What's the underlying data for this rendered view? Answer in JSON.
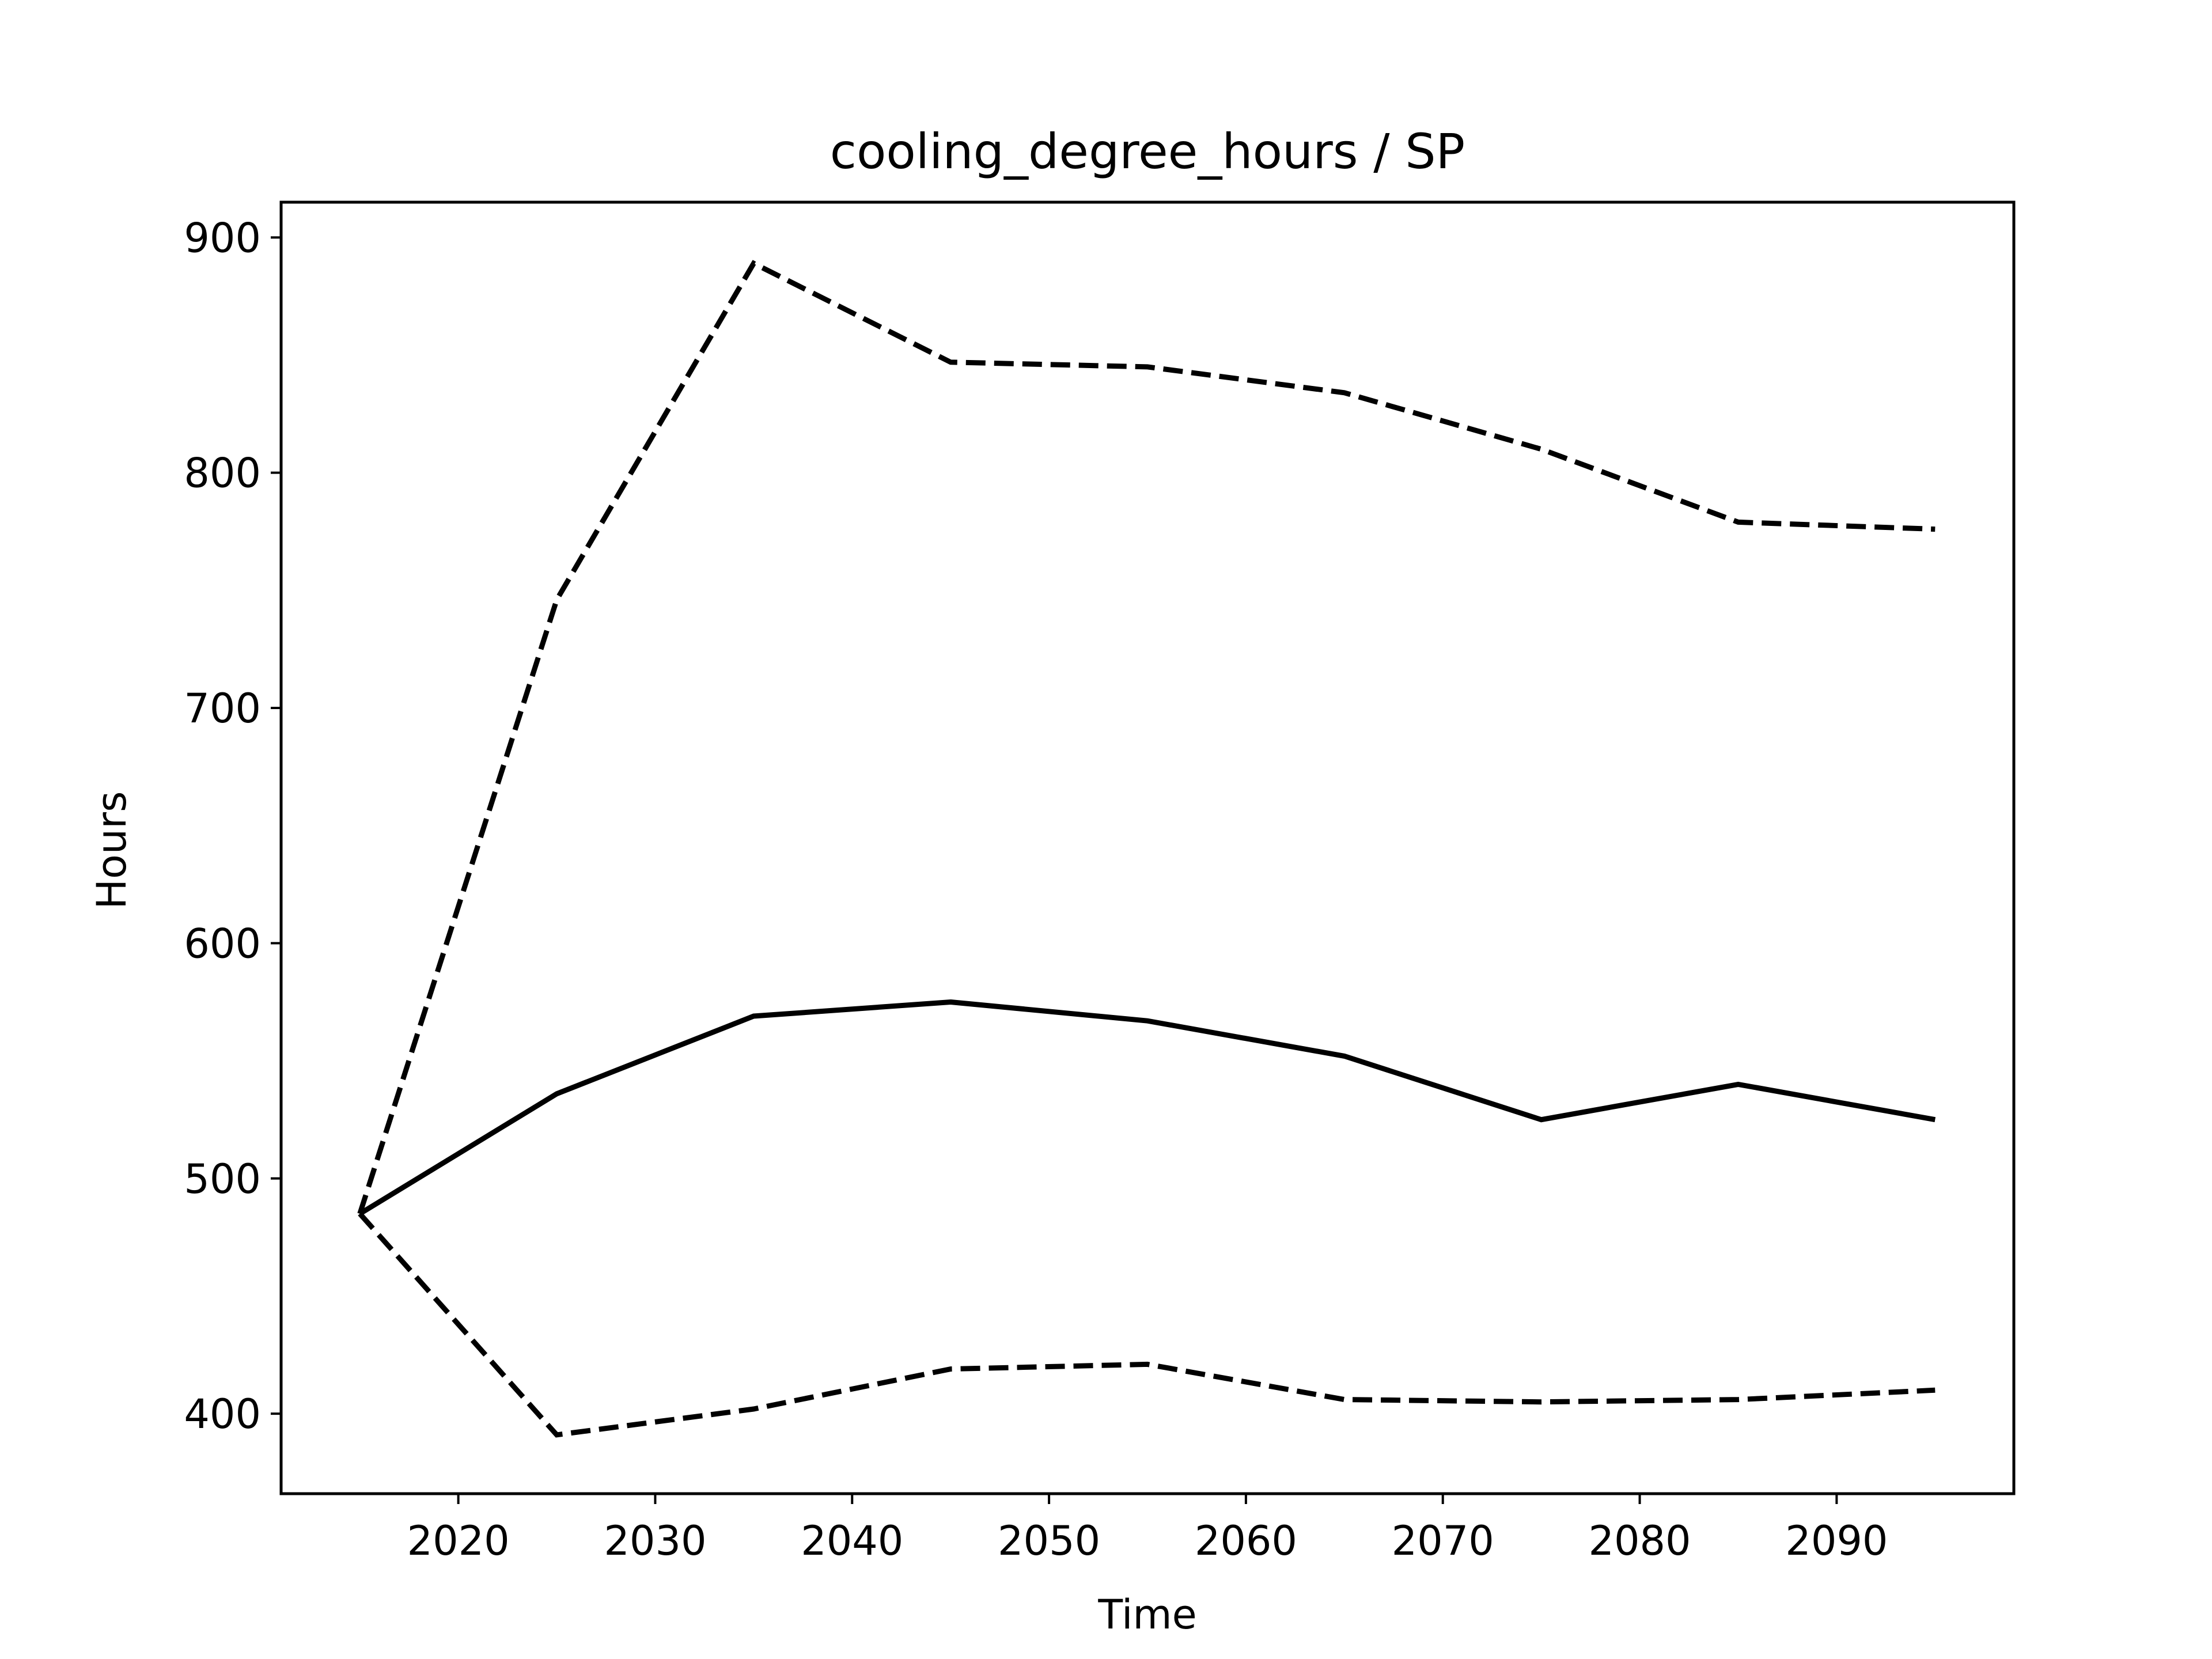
{
  "chart_data": {
    "type": "line",
    "title": "cooling_degree_hours / SP",
    "xlabel": "Time",
    "ylabel": "Hours",
    "x": [
      2015,
      2025,
      2035,
      2045,
      2055,
      2065,
      2075,
      2085,
      2095
    ],
    "xlim": [
      2011,
      2099
    ],
    "ylim": [
      366,
      915
    ],
    "xticks": [
      2020,
      2030,
      2040,
      2050,
      2060,
      2070,
      2080,
      2090
    ],
    "yticks": [
      400,
      500,
      600,
      700,
      800,
      900
    ],
    "grid": false,
    "legend": "none",
    "series": [
      {
        "style": "dashed",
        "color": "#000000",
        "values": [
          485,
          746,
          889,
          847,
          845,
          834,
          810,
          779,
          776
        ]
      },
      {
        "style": "solid",
        "color": "#000000",
        "values": [
          485,
          536,
          569,
          575,
          567,
          552,
          525,
          540,
          525
        ]
      },
      {
        "style": "dashed",
        "color": "#000000",
        "values": [
          485,
          391,
          402,
          419,
          421,
          406,
          405,
          406,
          410
        ]
      }
    ]
  }
}
